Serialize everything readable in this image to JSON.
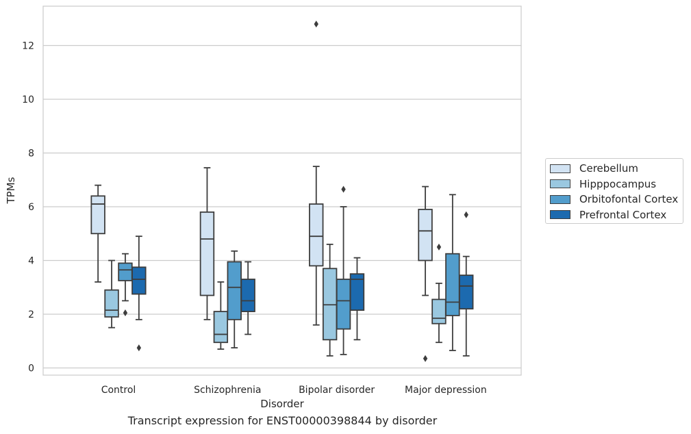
{
  "chart_data": {
    "type": "box",
    "title": "",
    "caption": "Transcript expression for ENST00000398844 by disorder",
    "xlabel": "Disorder",
    "ylabel": "TPMs",
    "ylim": [
      -0.25,
      13.25
    ],
    "yticks": [
      0,
      2,
      4,
      6,
      8,
      10,
      12
    ],
    "categories": [
      "Control",
      "Schizophrenia",
      "Bipolar disorder",
      "Major depression"
    ],
    "grid": "horizontal",
    "legend_position": "right",
    "series": [
      {
        "name": "Cerebellum",
        "color": "#d2e3f3",
        "boxes": [
          {
            "q1": 5.0,
            "median": 6.1,
            "q3": 6.4,
            "whisker_low": 3.2,
            "whisker_high": 6.8,
            "outliers": []
          },
          {
            "q1": 2.7,
            "median": 4.8,
            "q3": 5.8,
            "whisker_low": 1.8,
            "whisker_high": 7.45,
            "outliers": []
          },
          {
            "q1": 3.8,
            "median": 4.9,
            "q3": 6.1,
            "whisker_low": 1.6,
            "whisker_high": 7.5,
            "outliers": [
              12.8
            ]
          },
          {
            "q1": 4.0,
            "median": 5.1,
            "q3": 5.9,
            "whisker_low": 2.7,
            "whisker_high": 6.75,
            "outliers": [
              0.35
            ]
          }
        ]
      },
      {
        "name": "Hipppocampus",
        "color": "#9ac8e0",
        "boxes": [
          {
            "q1": 1.9,
            "median": 2.15,
            "q3": 2.9,
            "whisker_low": 1.5,
            "whisker_high": 4.0,
            "outliers": []
          },
          {
            "q1": 0.95,
            "median": 1.25,
            "q3": 2.1,
            "whisker_low": 0.7,
            "whisker_high": 3.2,
            "outliers": []
          },
          {
            "q1": 1.05,
            "median": 2.35,
            "q3": 3.7,
            "whisker_low": 0.45,
            "whisker_high": 4.6,
            "outliers": []
          },
          {
            "q1": 1.65,
            "median": 1.85,
            "q3": 2.55,
            "whisker_low": 0.95,
            "whisker_high": 3.15,
            "outliers": [
              4.5
            ]
          }
        ]
      },
      {
        "name": "Orbitofontal Cortex",
        "color": "#529dcc",
        "boxes": [
          {
            "q1": 3.25,
            "median": 3.65,
            "q3": 3.9,
            "whisker_low": 2.5,
            "whisker_high": 4.25,
            "outliers": [
              2.05
            ]
          },
          {
            "q1": 1.8,
            "median": 3.0,
            "q3": 3.95,
            "whisker_low": 0.75,
            "whisker_high": 4.35,
            "outliers": []
          },
          {
            "q1": 1.45,
            "median": 2.5,
            "q3": 3.3,
            "whisker_low": 0.5,
            "whisker_high": 6.0,
            "outliers": [
              6.65
            ]
          },
          {
            "q1": 1.95,
            "median": 2.45,
            "q3": 4.25,
            "whisker_low": 0.65,
            "whisker_high": 6.45,
            "outliers": []
          }
        ]
      },
      {
        "name": "Prefrontal Cortex",
        "color": "#1c6aaf",
        "boxes": [
          {
            "q1": 2.75,
            "median": 3.3,
            "q3": 3.75,
            "whisker_low": 1.8,
            "whisker_high": 4.9,
            "outliers": [
              0.75
            ]
          },
          {
            "q1": 2.1,
            "median": 2.5,
            "q3": 3.3,
            "whisker_low": 1.25,
            "whisker_high": 3.95,
            "outliers": []
          },
          {
            "q1": 2.15,
            "median": 3.3,
            "q3": 3.5,
            "whisker_low": 1.05,
            "whisker_high": 4.1,
            "outliers": []
          },
          {
            "q1": 2.2,
            "median": 3.05,
            "q3": 3.45,
            "whisker_low": 0.45,
            "whisker_high": 4.15,
            "outliers": [
              5.7
            ]
          }
        ]
      }
    ]
  }
}
